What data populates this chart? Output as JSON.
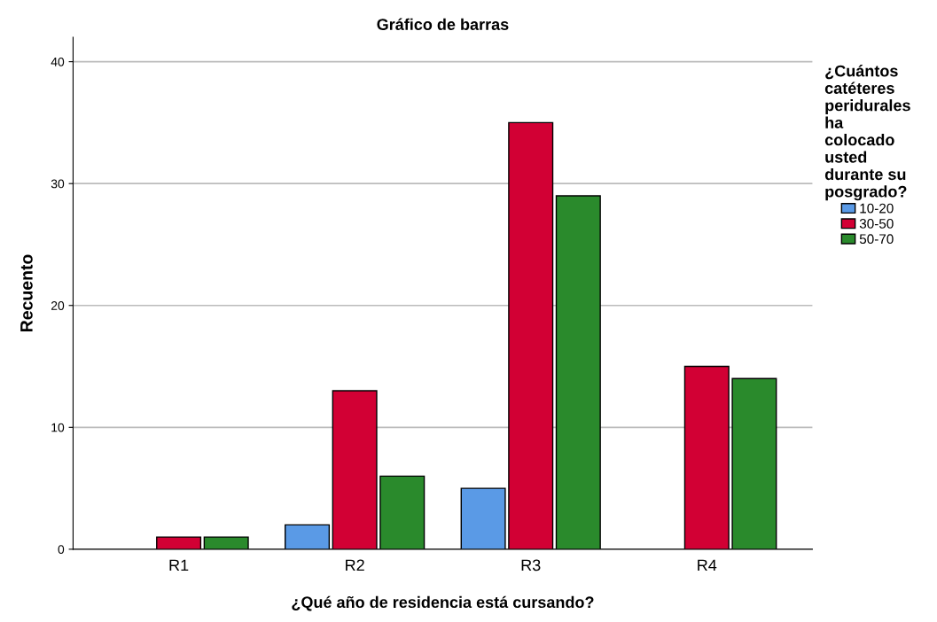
{
  "chart_data": {
    "type": "bar",
    "title": "Gráfico de barras",
    "xlabel": "¿Qué año de residencia está cursando?",
    "ylabel": "Recuento",
    "legend_title": "¿Cuántos\ncatéteres\nperidurales\nha\ncolocado\nusted\ndurante su\nposgrado?",
    "categories": [
      "R1",
      "R2",
      "R3",
      "R4"
    ],
    "series": [
      {
        "name": "10-20",
        "color": "#5a9ae6",
        "values": [
          null,
          2,
          5,
          null
        ]
      },
      {
        "name": "30-50",
        "color": "#d20034",
        "values": [
          1,
          13,
          35,
          15
        ]
      },
      {
        "name": "50-70",
        "color": "#2a8a2c",
        "values": [
          1,
          6,
          29,
          14
        ]
      }
    ],
    "ylim": [
      0,
      42
    ],
    "yticks": [
      0,
      10,
      20,
      30,
      40
    ],
    "grid": "y",
    "legend": "right"
  }
}
